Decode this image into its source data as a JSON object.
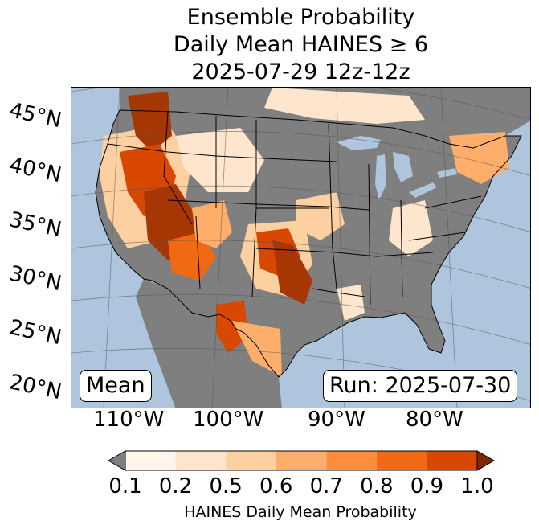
{
  "title": {
    "line1": "Ensemble Probability",
    "line2": "Daily Mean HAINES ≥ 6",
    "line3": "2025-07-29 12z-12z"
  },
  "map": {
    "lat_labels": [
      "45°N",
      "40°N",
      "35°N",
      "30°N",
      "25°N",
      "20°N"
    ],
    "lon_labels": [
      "110°W",
      "100°W",
      "90°W",
      "80°W"
    ],
    "stat_box": "Mean",
    "run_box": "Run: 2025-07-30",
    "ocean_color": "#aec5dd",
    "land_nodata_color": "#7f7f7f"
  },
  "colorbar": {
    "ticks": [
      "0.1",
      "0.2",
      "0.5",
      "0.6",
      "0.7",
      "0.8",
      "0.9",
      "1.0"
    ],
    "colors": [
      "#fff5eb",
      "#fee6ce",
      "#fdd0a2",
      "#fdae6b",
      "#fd8d3c",
      "#f16913",
      "#d94801",
      "#a63603"
    ],
    "under_color": "#7f7f7f",
    "over_color": "#7f2704",
    "label": "HAINES Daily Mean Probability"
  }
}
